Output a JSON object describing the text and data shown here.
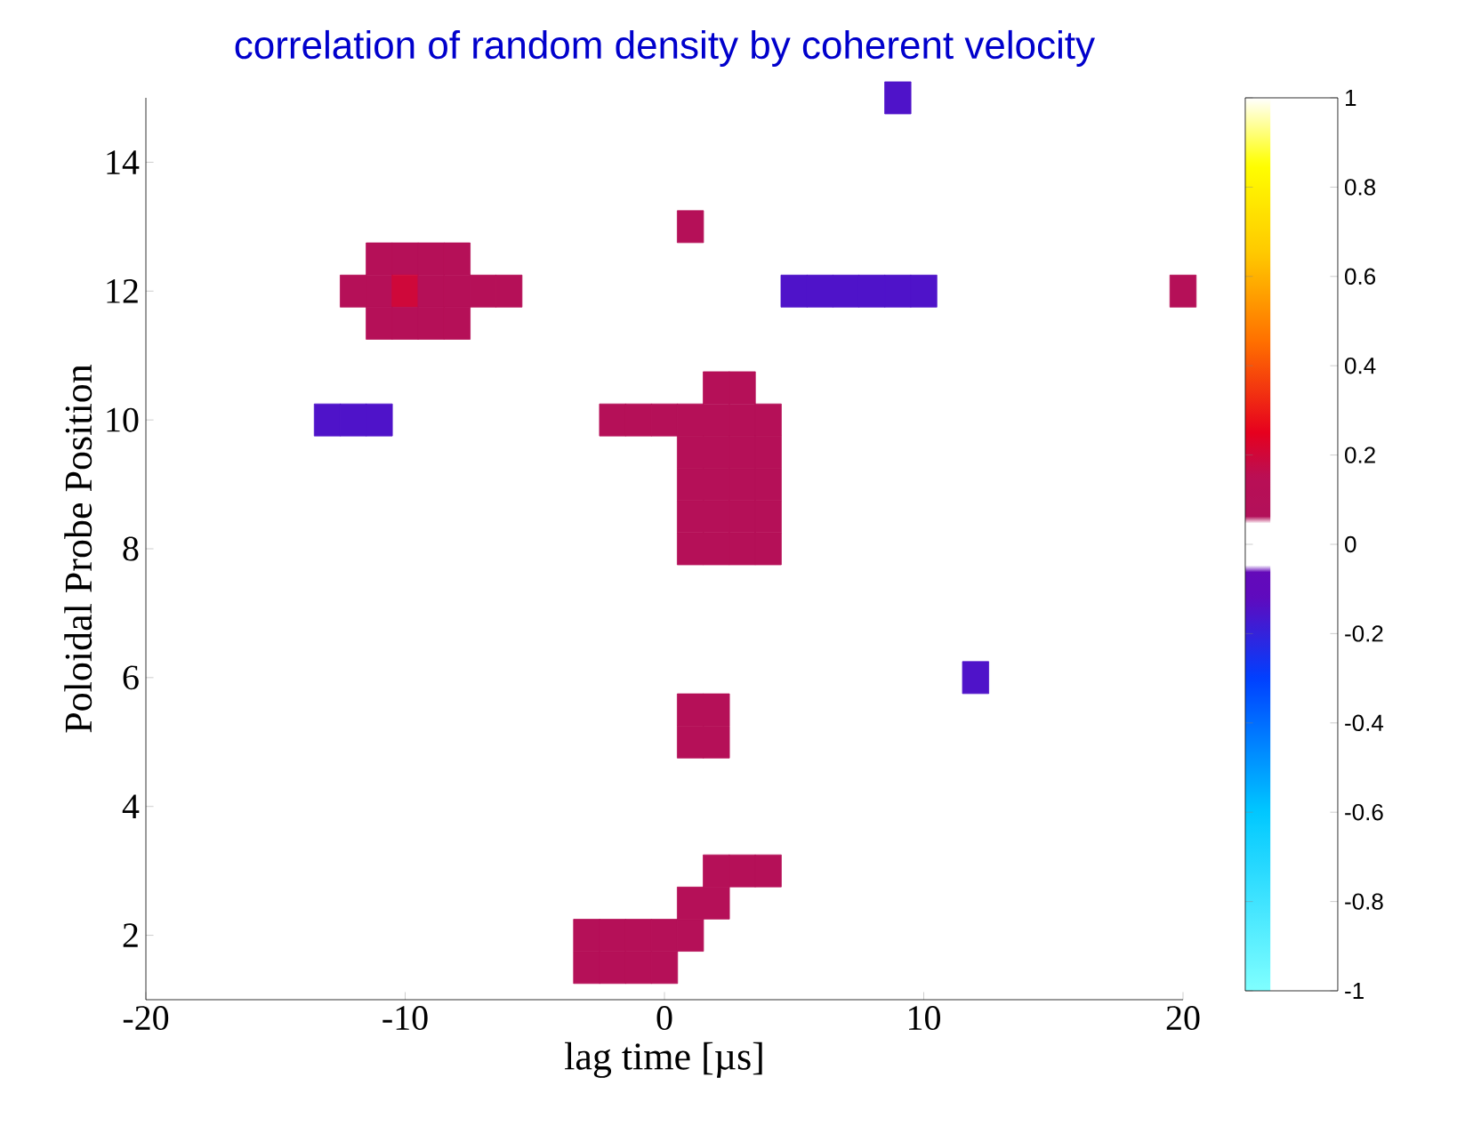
{
  "chart_data": {
    "type": "scatter",
    "title": "correlation of random density by coherent velocity",
    "xlabel": "lag time [µs]",
    "ylabel": "Poloidal Probe Position",
    "xlim": [
      -20,
      20
    ],
    "xticks": [
      -20,
      -10,
      0,
      10,
      20
    ],
    "ylim": [
      1,
      15
    ],
    "yticks": [
      2,
      4,
      6,
      8,
      10,
      12,
      14
    ],
    "clim": [
      -1,
      1
    ],
    "cticks": [
      -1,
      -0.8,
      -0.6,
      -0.4,
      -0.2,
      0,
      0.2,
      0.4,
      0.6,
      0.8,
      1
    ],
    "marker": "square",
    "grid": false,
    "x": [
      -11,
      -10,
      -9,
      -8,
      -12,
      -11,
      -10,
      -9,
      -8,
      -7,
      -6,
      -11,
      -10,
      -9,
      -8,
      1,
      5,
      6,
      7,
      8,
      9,
      10,
      9,
      20,
      -13,
      -12,
      -11,
      2,
      3,
      -2,
      -1,
      0,
      1,
      2,
      3,
      4,
      1,
      2,
      3,
      4,
      1,
      2,
      3,
      4,
      1,
      2,
      3,
      4,
      1,
      2,
      3,
      4,
      1,
      2,
      1,
      2,
      12,
      2,
      3,
      4,
      1,
      2,
      -3,
      -2,
      -1,
      0,
      1,
      -3,
      -2,
      -1,
      0
    ],
    "values": [
      12.5,
      12.5,
      12.5,
      12.5,
      12,
      12,
      12,
      12,
      12,
      12,
      12,
      11.5,
      11.5,
      11.5,
      11.5,
      13,
      12,
      12,
      12,
      12,
      12,
      12,
      15,
      12,
      10,
      10,
      10,
      10.5,
      10.5,
      10,
      10,
      10,
      10,
      10,
      10,
      10,
      9.5,
      9.5,
      9.5,
      9.5,
      9,
      9,
      9,
      9,
      8.5,
      8.5,
      8.5,
      8.5,
      8,
      8,
      8,
      8,
      5.5,
      5.5,
      5,
      5,
      6,
      3,
      3,
      3,
      2.5,
      2.5,
      2,
      2,
      2,
      2,
      2,
      1.5,
      1.5,
      1.5,
      1.5
    ],
    "cvalues": [
      0.1,
      0.1,
      0.1,
      0.1,
      0.1,
      0.1,
      0.2,
      0.1,
      0.1,
      0.1,
      0.1,
      0.1,
      0.1,
      0.1,
      0.1,
      0.1,
      -0.15,
      -0.15,
      -0.15,
      -0.15,
      -0.15,
      -0.15,
      -0.15,
      0.1,
      -0.15,
      -0.15,
      -0.15,
      0.1,
      0.1,
      0.1,
      0.1,
      0.1,
      0.1,
      0.1,
      0.1,
      0.1,
      0.1,
      0.1,
      0.1,
      0.1,
      0.1,
      0.1,
      0.1,
      0.1,
      0.1,
      0.1,
      0.1,
      0.1,
      0.1,
      0.1,
      0.1,
      0.1,
      0.1,
      0.1,
      0.1,
      0.1,
      -0.15,
      0.1,
      0.1,
      0.1,
      0.1,
      0.1,
      0.1,
      0.1,
      0.1,
      0.1,
      0.1,
      0.1,
      0.1,
      0.1,
      0.1
    ]
  }
}
